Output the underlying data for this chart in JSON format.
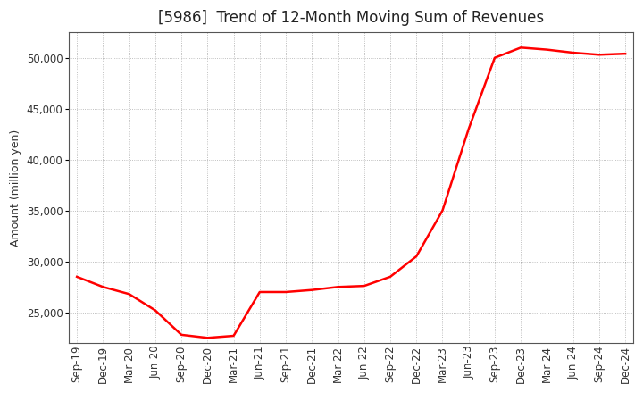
{
  "title": "[5986]  Trend of 12-Month Moving Sum of Revenues",
  "ylabel": "Amount (million yen)",
  "line_color": "#FF0000",
  "background_color": "#FFFFFF",
  "plot_bg_color": "#FFFFFF",
  "grid_color": "#999999",
  "xlabels": [
    "Sep-19",
    "Dec-19",
    "Mar-20",
    "Jun-20",
    "Sep-20",
    "Dec-20",
    "Mar-21",
    "Jun-21",
    "Sep-21",
    "Dec-21",
    "Mar-22",
    "Jun-22",
    "Sep-22",
    "Dec-22",
    "Mar-23",
    "Jun-23",
    "Sep-23",
    "Dec-23",
    "Mar-24",
    "Jun-24",
    "Sep-24",
    "Dec-24"
  ],
  "values": [
    28500,
    27500,
    26800,
    25200,
    22800,
    22500,
    22700,
    27000,
    27000,
    27200,
    27500,
    27600,
    28500,
    30500,
    35000,
    43000,
    50000,
    51000,
    50800,
    50500,
    50300,
    50400
  ],
  "ylim": [
    22000,
    52500
  ],
  "yticks": [
    25000,
    30000,
    35000,
    40000,
    45000,
    50000
  ],
  "title_fontsize": 12,
  "axis_fontsize": 9,
  "tick_fontsize": 8.5,
  "line_width": 1.8
}
